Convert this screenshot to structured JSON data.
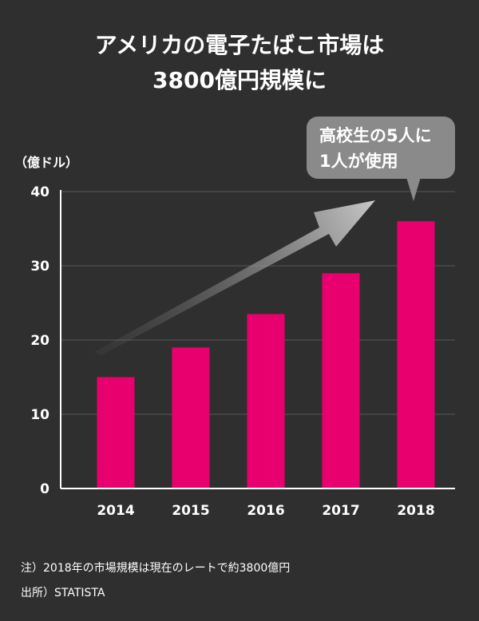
{
  "title": {
    "line1": "アメリカの電子たばこ市場は",
    "line2": "3800億円規模に"
  },
  "unit_label": "（億ドル）",
  "callout": {
    "line1": "高校生の5人に",
    "line2": "1人が使用"
  },
  "notes": {
    "note": "注）2018年の市場規模は現在のレートで約3800億円",
    "source": "出所）STATISTA"
  },
  "colors": {
    "background": "#2f2f2f",
    "bar": "#e8006f",
    "axis": "#ffffff",
    "gridline": "#5a5a5a",
    "callout": "#8a8a8a"
  },
  "chart_data": {
    "type": "bar",
    "title": "アメリカの電子たばこ市場は3800億円規模に",
    "ylabel": "（億ドル）",
    "xlabel": "",
    "categories": [
      "2014",
      "2015",
      "2016",
      "2017",
      "2018"
    ],
    "values": [
      15,
      19,
      23.5,
      29,
      36
    ],
    "ylim": [
      0,
      40
    ],
    "yticks": [
      0,
      10,
      20,
      30,
      40
    ],
    "grid": true,
    "annotation_arrow": "rising trend from 2014 to 2018"
  }
}
